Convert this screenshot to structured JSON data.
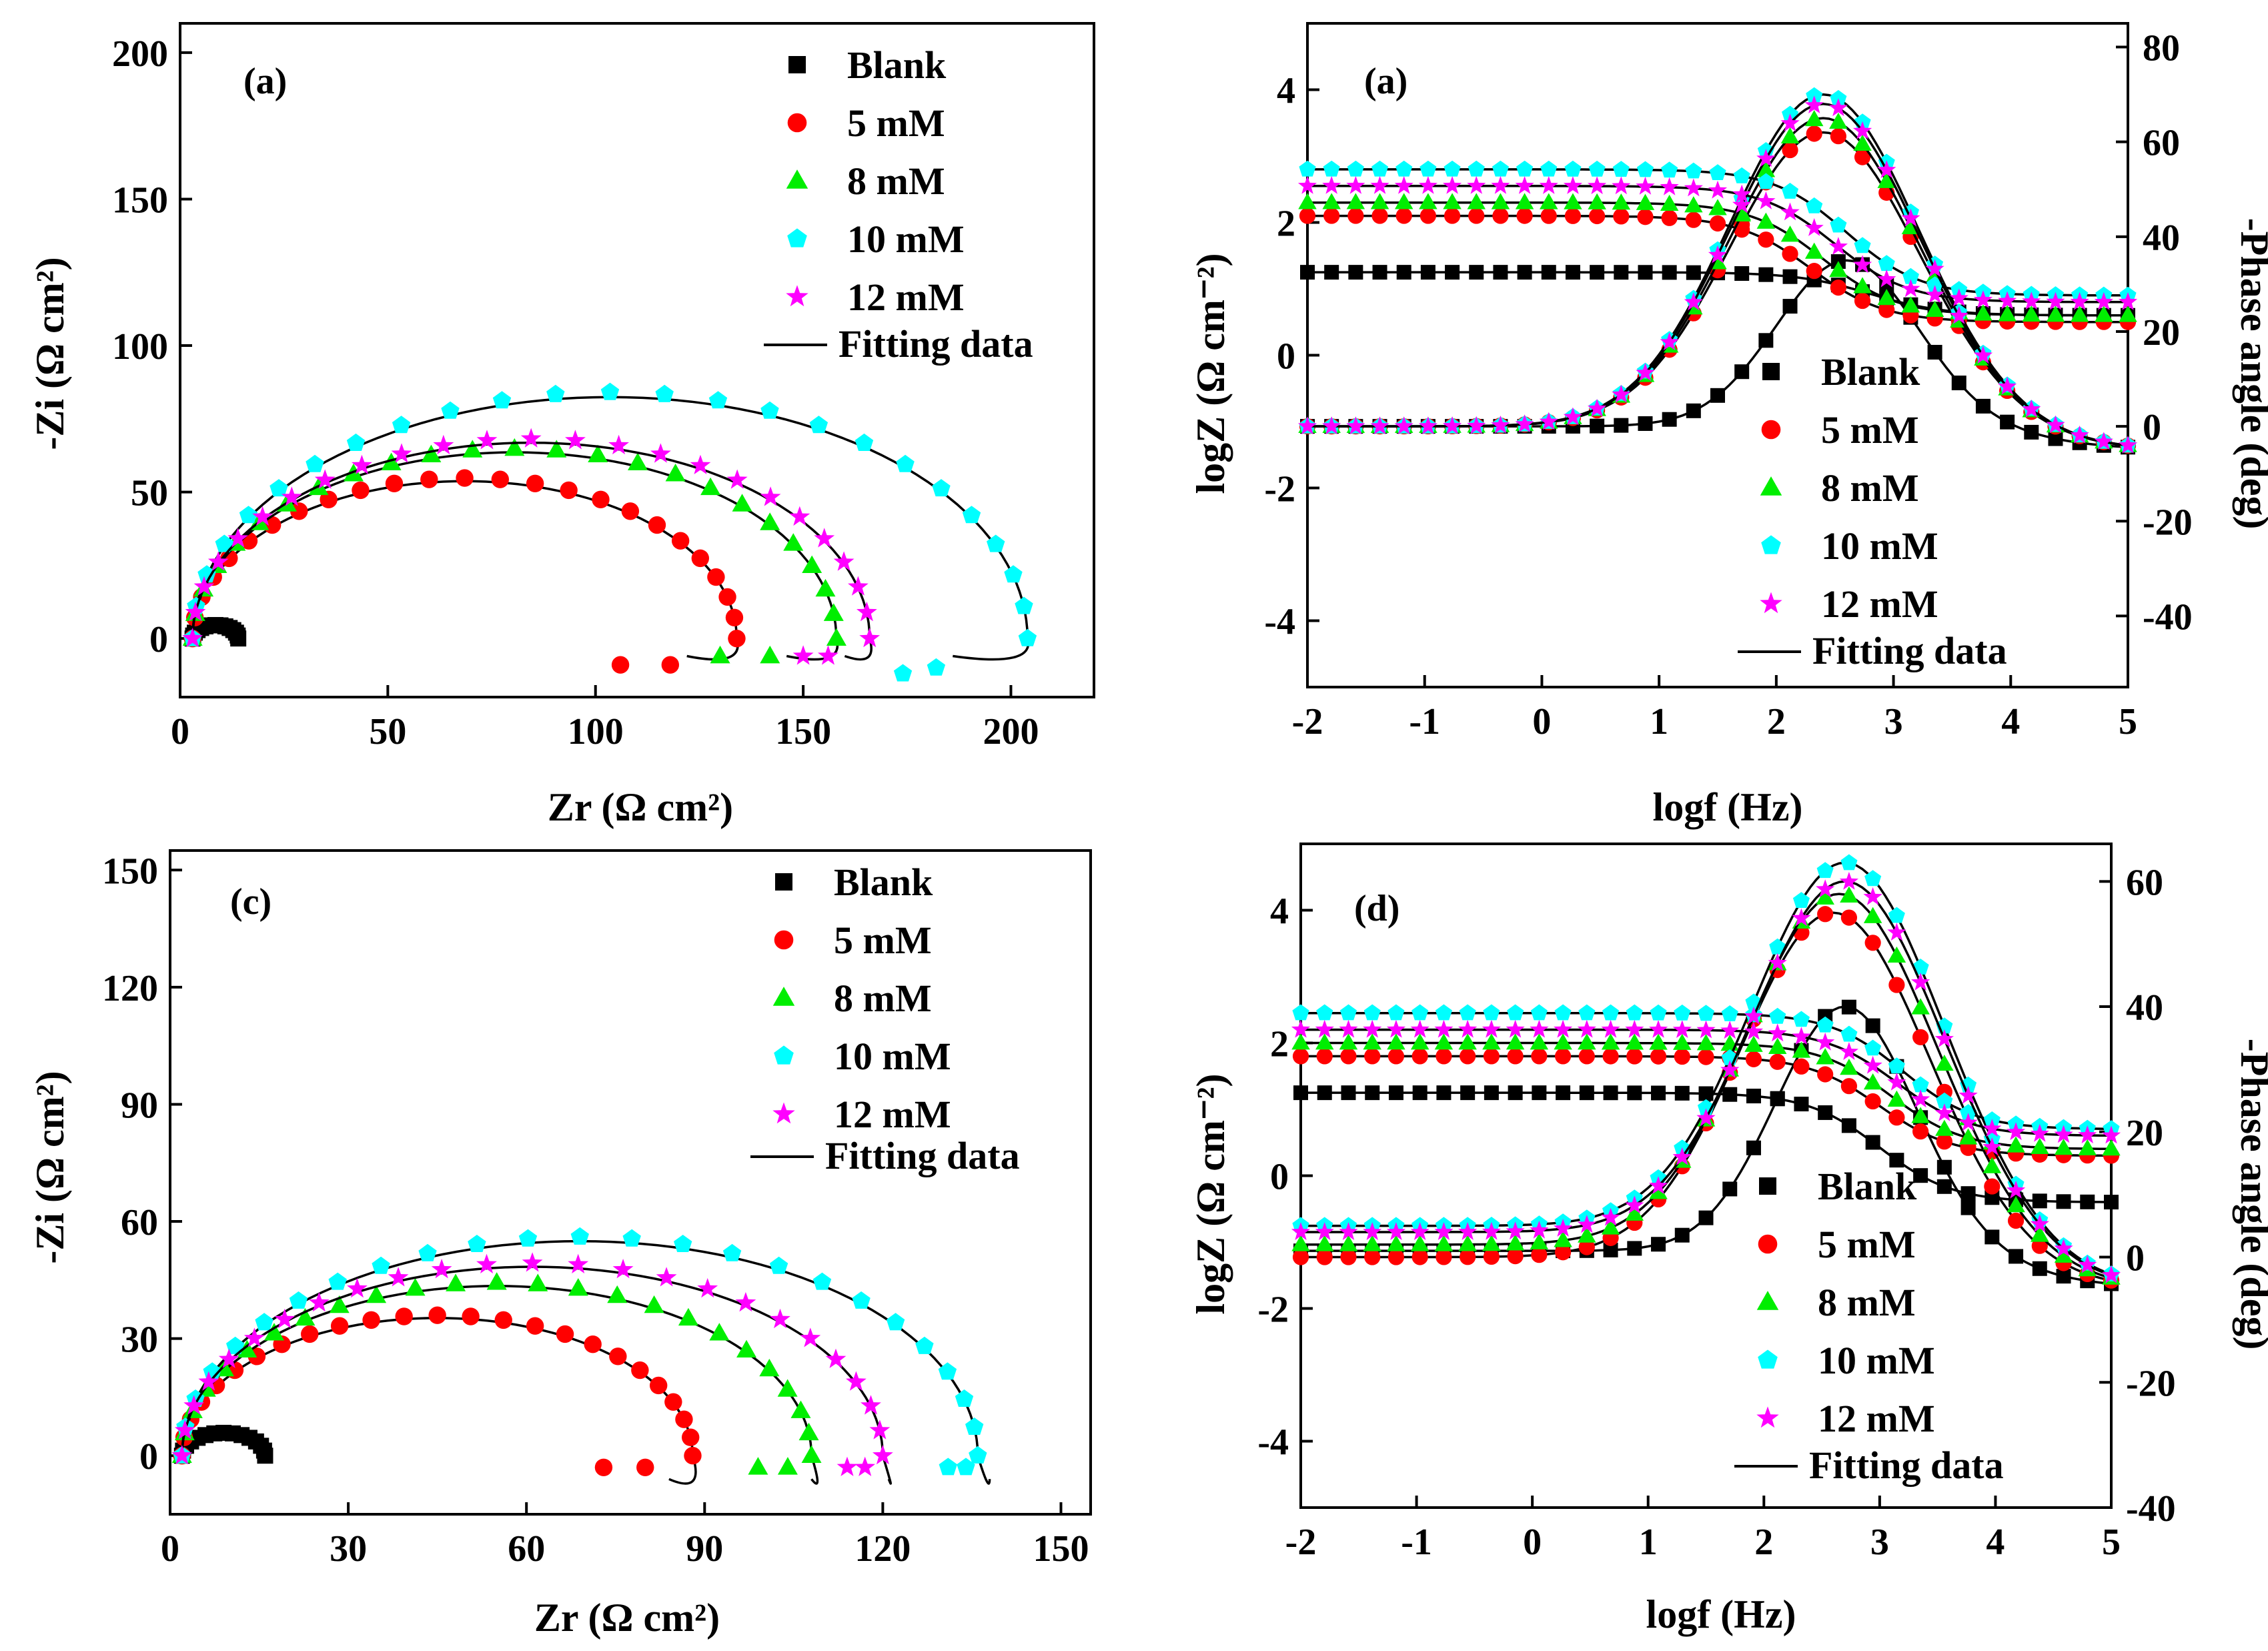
{
  "colors": {
    "Blank": "#000000",
    "5 mM": "#ff0000",
    "8 mM": "#00ee00",
    "10 mM": "#00ffff",
    "12 mM": "#ff00ff",
    "axis": "#000000"
  },
  "legend_series": [
    {
      "name": "Blank",
      "marker": "square"
    },
    {
      "name": "5 mM",
      "marker": "circle"
    },
    {
      "name": "8 mM",
      "marker": "triangle"
    },
    {
      "name": "10 mM",
      "marker": "pentagon"
    },
    {
      "name": "12 mM",
      "marker": "star"
    }
  ],
  "fit_label": "Fitting data",
  "chart_data": [
    {
      "type": "scatter",
      "subtype": "nyquist",
      "panel_label": "(a)",
      "xlabel": "Zr (Ω cm²)",
      "ylabel": "-Zi (Ω cm²)",
      "xlim": [
        0,
        220
      ],
      "ylim": [
        -20,
        210
      ],
      "xticks": [
        0,
        50,
        100,
        150,
        200
      ],
      "yticks": [
        0,
        50,
        100,
        150,
        200
      ],
      "series": [
        {
          "name": "Blank",
          "R": 14,
          "r0": 3,
          "tail": []
        },
        {
          "name": "5 mM",
          "R": 134,
          "r0": 3,
          "tail": [
            [
              118,
              -9
            ],
            [
              106,
              -9
            ]
          ]
        },
        {
          "name": "8 mM",
          "R": 158,
          "r0": 3,
          "tail": [
            [
              142,
              -6
            ],
            [
              130,
              -6
            ]
          ]
        },
        {
          "name": "10 mM",
          "R": 204,
          "r0": 3,
          "tail": [
            [
              182,
              -10
            ],
            [
              174,
              -12
            ]
          ]
        },
        {
          "name": "12 mM",
          "R": 166,
          "r0": 3,
          "tail": [
            [
              156,
              -6
            ],
            [
              150,
              -6
            ]
          ]
        }
      ]
    },
    {
      "type": "scatter",
      "subtype": "bode",
      "panel_label": "(a)",
      "xlabel": "logf (Hz)",
      "ylabel": "logZ (Ω cm⁻²)",
      "y2label": "-Phase angle (deg)",
      "xlim": [
        -2,
        5
      ],
      "ylim": [
        -5,
        5
      ],
      "y2lim": [
        -55,
        85
      ],
      "xticks": [
        -2,
        -1,
        0,
        1,
        2,
        3,
        4,
        5
      ],
      "yticks": [
        -4,
        -2,
        0,
        2,
        4
      ],
      "y2ticks": [
        -40,
        -20,
        0,
        20,
        40,
        60,
        80
      ],
      "series": [
        {
          "name": "Blank",
          "zlow": 1.25,
          "zhigh": 0.6,
          "fc": 2.8,
          "pmax": 35,
          "fpk": 2.6,
          "sig": 0.6,
          "plow": 0
        },
        {
          "name": "5 mM",
          "zlow": 2.1,
          "zhigh": 0.5,
          "fc": 2.3,
          "pmax": 62,
          "fpk": 2.4,
          "sig": 0.8,
          "plow": 0
        },
        {
          "name": "8 mM",
          "zlow": 2.3,
          "zhigh": 0.6,
          "fc": 2.4,
          "pmax": 65,
          "fpk": 2.4,
          "sig": 0.8,
          "plow": 0
        },
        {
          "name": "10 mM",
          "zlow": 2.8,
          "zhigh": 0.9,
          "fc": 2.6,
          "pmax": 70,
          "fpk": 2.4,
          "sig": 0.8,
          "plow": 0
        },
        {
          "name": "12 mM",
          "zlow": 2.55,
          "zhigh": 0.8,
          "fc": 2.5,
          "pmax": 68,
          "fpk": 2.4,
          "sig": 0.8,
          "plow": 0
        }
      ]
    },
    {
      "type": "scatter",
      "subtype": "nyquist",
      "panel_label": "(c)",
      "xlabel": "Zr (Ω cm²)",
      "ylabel": "-Zi (Ω cm²)",
      "xlim": [
        0,
        155
      ],
      "ylim": [
        -15,
        155
      ],
      "xticks": [
        0,
        30,
        60,
        90,
        120,
        150
      ],
      "yticks": [
        0,
        30,
        60,
        90,
        120,
        150
      ],
      "series": [
        {
          "name": "Blank",
          "R": 16,
          "r0": 2,
          "tail": []
        },
        {
          "name": "5 mM",
          "R": 88,
          "r0": 2,
          "tail": [
            [
              80,
              -3
            ],
            [
              73,
              -3
            ]
          ]
        },
        {
          "name": "8 mM",
          "R": 108,
          "r0": 2,
          "tail": [
            [
              104,
              -3
            ],
            [
              99,
              -3
            ]
          ]
        },
        {
          "name": "10 mM",
          "R": 136,
          "r0": 2,
          "tail": [
            [
              134,
              -3
            ],
            [
              131,
              -3
            ]
          ]
        },
        {
          "name": "12 mM",
          "R": 120,
          "r0": 2,
          "tail": [
            [
              117,
              -3
            ],
            [
              114,
              -3
            ]
          ]
        }
      ]
    },
    {
      "type": "scatter",
      "subtype": "bode",
      "panel_label": "(d)",
      "xlabel": "logf (Hz)",
      "ylabel": "logZ (Ω cm⁻²)",
      "y2label": "-Phase angle (deg)",
      "xlim": [
        -2,
        5
      ],
      "ylim": [
        -5,
        5
      ],
      "y2lim": [
        -40,
        66
      ],
      "xticks": [
        -2,
        -1,
        0,
        1,
        2,
        3,
        4,
        5
      ],
      "yticks": [
        -4,
        -2,
        0,
        2,
        4
      ],
      "y2ticks": [
        -40,
        -20,
        0,
        20,
        40,
        60
      ],
      "series": [
        {
          "name": "Blank",
          "zlow": 1.25,
          "zhigh": -0.4,
          "fc": 3.0,
          "pmax": 40,
          "fpk": 2.7,
          "sig": 0.6,
          "plow": 1
        },
        {
          "name": "5 mM",
          "zlow": 1.8,
          "zhigh": 0.3,
          "fc": 3.0,
          "pmax": 55,
          "fpk": 2.6,
          "sig": 0.8,
          "plow": 0
        },
        {
          "name": "8 mM",
          "zlow": 2.0,
          "zhigh": 0.4,
          "fc": 3.1,
          "pmax": 58,
          "fpk": 2.65,
          "sig": 0.8,
          "plow": 2
        },
        {
          "name": "10 mM",
          "zlow": 2.45,
          "zhigh": 0.7,
          "fc": 3.2,
          "pmax": 63,
          "fpk": 2.7,
          "sig": 0.8,
          "plow": 5
        },
        {
          "name": "12 mM",
          "zlow": 2.2,
          "zhigh": 0.6,
          "fc": 3.15,
          "pmax": 60,
          "fpk": 2.7,
          "sig": 0.8,
          "plow": 4
        }
      ]
    }
  ]
}
